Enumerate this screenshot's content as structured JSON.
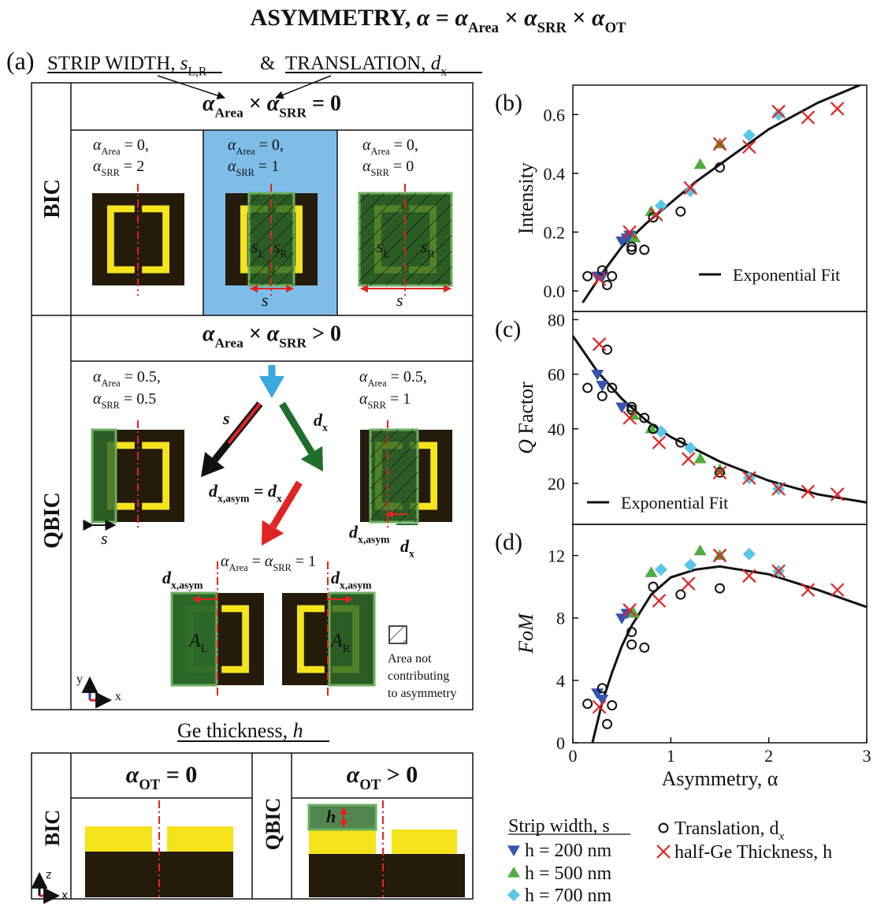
{
  "title": [
    {
      "text": "ASYMMETRY, "
    },
    {
      "it": "α"
    },
    {
      "text": " = "
    },
    {
      "it": "α"
    },
    {
      "sub": "Area"
    },
    {
      "text": " × "
    },
    {
      "it": "α"
    },
    {
      "sub": "SRR"
    },
    {
      "text": " × "
    },
    {
      "it": "α"
    },
    {
      "sub": "OT"
    }
  ],
  "panel_a": {
    "label": "(a)",
    "strip": [
      {
        "text": "STRIP WIDTH, "
      },
      {
        "it": "s"
      },
      {
        "sub": "L,R"
      }
    ],
    "amp": "&",
    "translation": [
      {
        "text": "TRANSLATION, "
      },
      {
        "it": "d"
      },
      {
        "sub": "x"
      }
    ],
    "bic": "BIC",
    "bic_header": [
      {
        "it": "α"
      },
      {
        "sub": "Area"
      },
      {
        "text": " × "
      },
      {
        "it": "α"
      },
      {
        "sub": "SRR"
      },
      {
        "text": " = 0"
      }
    ],
    "bic_cells": [
      [
        [
          {
            "it": "α"
          },
          {
            "sub": "Area"
          },
          {
            "text": " = 0,"
          }
        ],
        [
          {
            "it": "α"
          },
          {
            "sub": "SRR"
          },
          {
            "text": " = 2"
          }
        ]
      ],
      [
        [
          {
            "it": "α"
          },
          {
            "sub": "Area"
          },
          {
            "text": " = 0,"
          }
        ],
        [
          {
            "it": "α"
          },
          {
            "sub": "SRR"
          },
          {
            "text": " = 1"
          }
        ]
      ],
      [
        [
          {
            "it": "α"
          },
          {
            "sub": "Area"
          },
          {
            "text": " = 0,"
          }
        ],
        [
          {
            "it": "α"
          },
          {
            "sub": "SRR"
          },
          {
            "text": " = 0"
          }
        ]
      ]
    ],
    "bic_diagram_labels": [
      {
        "left": [
          {
            "it": "s"
          },
          {
            "sub": "L"
          }
        ],
        "right": [
          {
            "it": "s"
          },
          {
            "sub": "R"
          }
        ],
        "width": "s"
      },
      {
        "left": [
          {
            "it": "s"
          },
          {
            "sub": "L"
          }
        ],
        "right": [
          {
            "it": "s"
          },
          {
            "sub": "R"
          }
        ],
        "width": "s"
      }
    ],
    "qbic": "QBIC",
    "qbic_header": [
      {
        "it": "α"
      },
      {
        "sub": "Area"
      },
      {
        "text": " × "
      },
      {
        "it": "α"
      },
      {
        "sub": "SRR"
      },
      {
        "text": " > 0"
      }
    ],
    "qbic_cells": [
      [
        [
          {
            "it": "α"
          },
          {
            "sub": "Area"
          },
          {
            "text": " = 0.5,"
          }
        ],
        [
          {
            "it": "α"
          },
          {
            "sub": "SRR"
          },
          {
            "text": " = 0.5"
          }
        ]
      ],
      [
        [
          {
            "it": "α"
          },
          {
            "sub": "Area"
          },
          {
            "text": " = 0.5,"
          }
        ],
        [
          {
            "it": "α"
          },
          {
            "sub": "SRR"
          },
          {
            "text": " = 1"
          }
        ]
      ]
    ],
    "arrow_s": "s",
    "arrow_dx": [
      {
        "it": "d"
      },
      {
        "sub": "x"
      }
    ],
    "equation": [
      {
        "it": "d"
      },
      {
        "sub": "x,asym"
      },
      {
        "text": " = "
      },
      {
        "it": "d"
      },
      {
        "sub": "x"
      }
    ],
    "left_width": "s",
    "right_dxasym": [
      {
        "it": "d"
      },
      {
        "sub": "x,asym"
      }
    ],
    "right_dx": [
      {
        "it": "d"
      },
      {
        "sub": "x"
      }
    ],
    "bottom_caption": [
      {
        "it": "α"
      },
      {
        "sub": "Area"
      },
      {
        "text": " = "
      },
      {
        "it": "α"
      },
      {
        "sub": "SRR"
      },
      {
        "text": " = 1"
      }
    ],
    "bottom_dxasym_left": [
      {
        "it": "d"
      },
      {
        "sub": "x,asym"
      }
    ],
    "bottom_dxasym_right": [
      {
        "it": "d"
      },
      {
        "sub": "x,asym"
      }
    ],
    "area_left": [
      {
        "it": "A"
      },
      {
        "sub": "L"
      }
    ],
    "area_right": [
      {
        "it": "A"
      },
      {
        "sub": "R"
      }
    ],
    "hatch_note": [
      "Area not",
      "contributing",
      "to asymmetry"
    ],
    "axis_y": "y",
    "axis_x": "x",
    "ge_heading": [
      {
        "text": "Ge thickness, "
      },
      {
        "it": "h"
      }
    ],
    "ot_bic_header": [
      {
        "it": "α"
      },
      {
        "sub": "OT"
      },
      {
        "text": " = 0"
      }
    ],
    "ot_qbic_header": [
      {
        "it": "α"
      },
      {
        "sub": "OT"
      },
      {
        "text": " > 0"
      }
    ],
    "ot_bic": "BIC",
    "ot_qbic": "QBIC",
    "ot_h": "h",
    "axis_z": "z",
    "axis_x2": "x"
  },
  "chart_data": [
    {
      "type": "scatter",
      "panel_label": "(b)",
      "y_label": "Intensity",
      "xlim": [
        0,
        3
      ],
      "ylim": [
        -0.07,
        0.7
      ],
      "yticks": [
        {
          "value": 0,
          "label": "0.0"
        },
        0.2,
        0.4,
        0.6
      ],
      "series": [
        {
          "color": "#3553b0",
          "marker": "triangle-down",
          "x": [
            0.25,
            0.3,
            0.5,
            0.55,
            0.58
          ],
          "values": [
            0.05,
            0.05,
            0.17,
            0.18,
            0.19
          ]
        },
        {
          "color": "#4fae3f",
          "marker": "triangle-up",
          "x": [
            0.63,
            0.8,
            1.3,
            1.5
          ],
          "values": [
            0.18,
            0.27,
            0.43,
            0.5
          ]
        },
        {
          "color": "#5cc6e8",
          "marker": "diamond",
          "x": [
            0.9,
            1.2,
            1.8,
            2.1
          ],
          "values": [
            0.29,
            0.34,
            0.53,
            0.6
          ]
        },
        {
          "color": "#111111",
          "marker": "circle",
          "x": [
            0.15,
            0.3,
            0.35,
            0.4,
            0.6,
            0.6,
            0.73,
            0.82,
            1.1,
            1.5
          ],
          "values": [
            0.05,
            0.07,
            0.02,
            0.05,
            0.14,
            0.15,
            0.14,
            0.25,
            0.27,
            0.42
          ]
        },
        {
          "color": "#e02424",
          "marker": "cross",
          "x": [
            0.27,
            0.58,
            0.85,
            1.2,
            1.5,
            1.8,
            2.1,
            2.4,
            2.7
          ],
          "values": [
            0.04,
            0.2,
            0.26,
            0.35,
            0.5,
            0.49,
            0.61,
            0.59,
            0.62
          ]
        }
      ],
      "fit": {
        "name": "Exponential Fit",
        "x": [
          0.1,
          0.3,
          0.5,
          0.75,
          1,
          1.25,
          1.5,
          2,
          2.5,
          3
        ],
        "values": [
          -0.04,
          0.06,
          0.15,
          0.23,
          0.3,
          0.37,
          0.43,
          0.55,
          0.64,
          0.71
        ]
      }
    },
    {
      "type": "scatter",
      "panel_label": "(c)",
      "y_label": [
        {
          "it": "Q"
        },
        {
          "text": " Factor"
        }
      ],
      "xlim": [
        0,
        3
      ],
      "ylim": [
        5,
        83
      ],
      "yticks": [
        20,
        40,
        60,
        80
      ],
      "series": [
        {
          "color": "#3553b0",
          "marker": "triangle-down",
          "x": [
            0.25,
            0.3,
            0.5
          ],
          "values": [
            60,
            56,
            48
          ]
        },
        {
          "color": "#4fae3f",
          "marker": "triangle-up",
          "x": [
            0.62,
            0.8,
            1.3,
            1.5
          ],
          "values": [
            45,
            40,
            29,
            25
          ]
        },
        {
          "color": "#5cc6e8",
          "marker": "diamond",
          "x": [
            0.9,
            1.2,
            1.8,
            2.1
          ],
          "values": [
            39,
            33,
            22,
            18
          ]
        },
        {
          "color": "#111111",
          "marker": "circle",
          "x": [
            0.15,
            0.3,
            0.35,
            0.4,
            0.6,
            0.6,
            0.73,
            0.82,
            1.1,
            1.5
          ],
          "values": [
            55,
            52,
            69,
            55,
            47,
            48,
            44,
            40,
            35,
            24
          ]
        },
        {
          "color": "#e02424",
          "marker": "cross",
          "x": [
            0.27,
            0.58,
            0.88,
            1.18,
            1.5,
            1.8,
            2.1,
            2.4,
            2.7
          ],
          "values": [
            71,
            44,
            35,
            29,
            24,
            22,
            18,
            17,
            16
          ]
        }
      ],
      "fit": {
        "name": "Exponential Fit",
        "x": [
          0,
          0.25,
          0.5,
          0.75,
          1,
          1.5,
          2,
          2.5,
          3
        ],
        "values": [
          74,
          61,
          51,
          43,
          37,
          28,
          21,
          16,
          13
        ]
      }
    },
    {
      "type": "scatter",
      "panel_label": "(d)",
      "y_label": "FoM",
      "x_label": "Asymmetry, α",
      "xlim": [
        0,
        3
      ],
      "ylim": [
        0,
        14
      ],
      "xticks": [
        0,
        1,
        2,
        3
      ],
      "yticks": [
        0,
        4,
        8,
        12
      ],
      "legend_title": "Strip width, s",
      "series": [
        {
          "name": "h = 200 nm",
          "color": "#3553b0",
          "marker": "triangle-down",
          "x": [
            0.25,
            0.3,
            0.5,
            0.55
          ],
          "values": [
            3.2,
            2.8,
            8,
            8.3
          ]
        },
        {
          "name": "h = 500 nm",
          "color": "#4fae3f",
          "marker": "triangle-up",
          "x": [
            0.62,
            0.8,
            1.3,
            1.5
          ],
          "values": [
            8.3,
            10.9,
            12.3,
            12
          ]
        },
        {
          "name": "h = 700 nm",
          "color": "#5cc6e8",
          "marker": "diamond",
          "x": [
            0.9,
            1.2,
            1.8,
            2.1
          ],
          "values": [
            11.1,
            11.4,
            12.1,
            11
          ]
        },
        {
          "name": "Translation, d",
          "name_sub": "x",
          "color": "#111111",
          "marker": "circle",
          "x": [
            0.15,
            0.3,
            0.35,
            0.4,
            0.6,
            0.6,
            0.73,
            0.82,
            1.1,
            1.5
          ],
          "values": [
            2.5,
            3.5,
            1.2,
            2.4,
            7.1,
            6.3,
            6.1,
            10,
            9.5,
            9.9
          ]
        },
        {
          "name": "half-Ge Thickness, h",
          "color": "#e02424",
          "marker": "cross",
          "x": [
            0.27,
            0.58,
            0.88,
            1.18,
            1.5,
            1.8,
            2.1,
            2.4,
            2.7
          ],
          "values": [
            2.3,
            8.5,
            9.1,
            10.2,
            12,
            10.7,
            11,
            9.8,
            9.8
          ]
        }
      ],
      "fit": {
        "x": [
          0.2,
          0.3,
          0.4,
          0.5,
          0.6,
          0.8,
          1,
          1.25,
          1.5,
          2,
          2.5,
          3
        ],
        "values": [
          0,
          2.6,
          4.5,
          6.2,
          7.5,
          9.5,
          10.6,
          11.1,
          11.3,
          10.8,
          9.8,
          8.7
        ]
      }
    }
  ]
}
